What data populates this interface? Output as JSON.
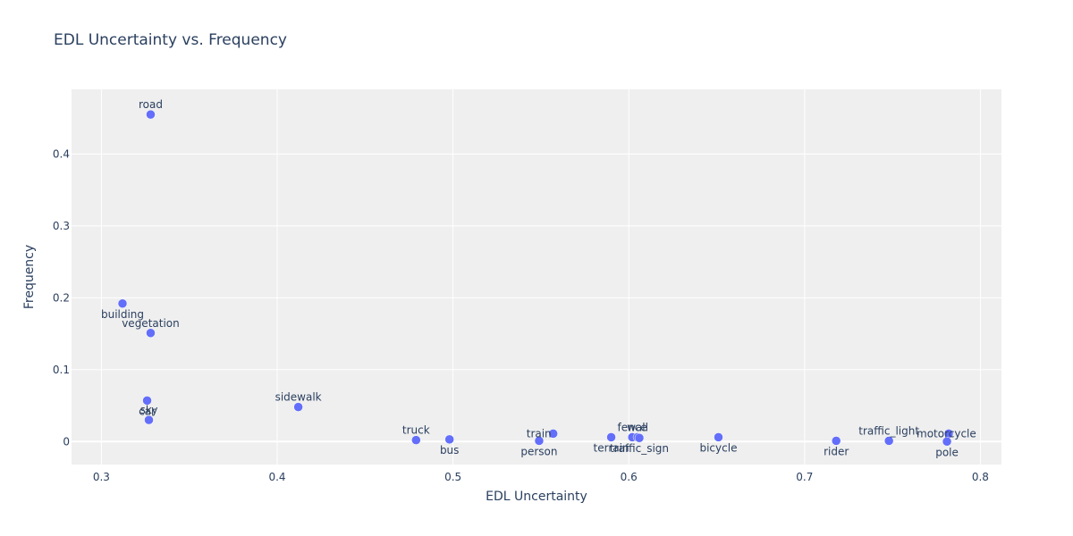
{
  "chart_data": {
    "type": "scatter",
    "title": "EDL Uncertainty vs. Frequency",
    "xlabel": "EDL Uncertainty",
    "ylabel": "Frequency",
    "xlim": [
      0.283,
      0.812
    ],
    "ylim": [
      -0.032,
      0.49
    ],
    "x_ticks": [
      0.3,
      0.4,
      0.5,
      0.6,
      0.7,
      0.8
    ],
    "x_tick_labels": [
      "0.3",
      "0.4",
      "0.5",
      "0.6",
      "0.7",
      "0.8"
    ],
    "y_ticks": [
      0,
      0.1,
      0.2,
      0.3,
      0.4
    ],
    "y_tick_labels": [
      "0",
      "0.1",
      "0.2",
      "0.3",
      "0.4"
    ],
    "grid": true,
    "marker_color": "#636efa",
    "plot_bg": "#efefef",
    "points": [
      {
        "label": "road",
        "x": 0.328,
        "y": 0.455,
        "pos": "top"
      },
      {
        "label": "building",
        "x": 0.312,
        "y": 0.192,
        "pos": "bottom"
      },
      {
        "label": "vegetation",
        "x": 0.328,
        "y": 0.151,
        "pos": "top"
      },
      {
        "label": "car",
        "x": 0.326,
        "y": 0.057,
        "pos": "bottom"
      },
      {
        "label": "sky",
        "x": 0.327,
        "y": 0.03,
        "pos": "top"
      },
      {
        "label": "sidewalk",
        "x": 0.412,
        "y": 0.048,
        "pos": "top"
      },
      {
        "label": "truck",
        "x": 0.479,
        "y": 0.002,
        "pos": "top"
      },
      {
        "label": "bus",
        "x": 0.498,
        "y": 0.003,
        "pos": "bottom"
      },
      {
        "label": "person",
        "x": 0.549,
        "y": 0.001,
        "pos": "bottom"
      },
      {
        "label": "train",
        "x": 0.557,
        "y": 0.011,
        "pos": "left"
      },
      {
        "label": "terrain",
        "x": 0.59,
        "y": 0.006,
        "pos": "bottom"
      },
      {
        "label": "fence",
        "x": 0.602,
        "y": 0.006,
        "pos": "top"
      },
      {
        "label": "wall",
        "x": 0.605,
        "y": 0.006,
        "pos": "top"
      },
      {
        "label": "traffic_sign",
        "x": 0.606,
        "y": 0.005,
        "pos": "bottom"
      },
      {
        "label": "bicycle",
        "x": 0.651,
        "y": 0.006,
        "pos": "bottom"
      },
      {
        "label": "rider",
        "x": 0.718,
        "y": 0.001,
        "pos": "bottom"
      },
      {
        "label": "traffic_light",
        "x": 0.748,
        "y": 0.001,
        "pos": "top"
      },
      {
        "label": "motorcycle",
        "x": 0.782,
        "y": 0.011,
        "pos": "right"
      },
      {
        "label": "pole",
        "x": 0.781,
        "y": 0.0,
        "pos": "bottom"
      }
    ]
  }
}
